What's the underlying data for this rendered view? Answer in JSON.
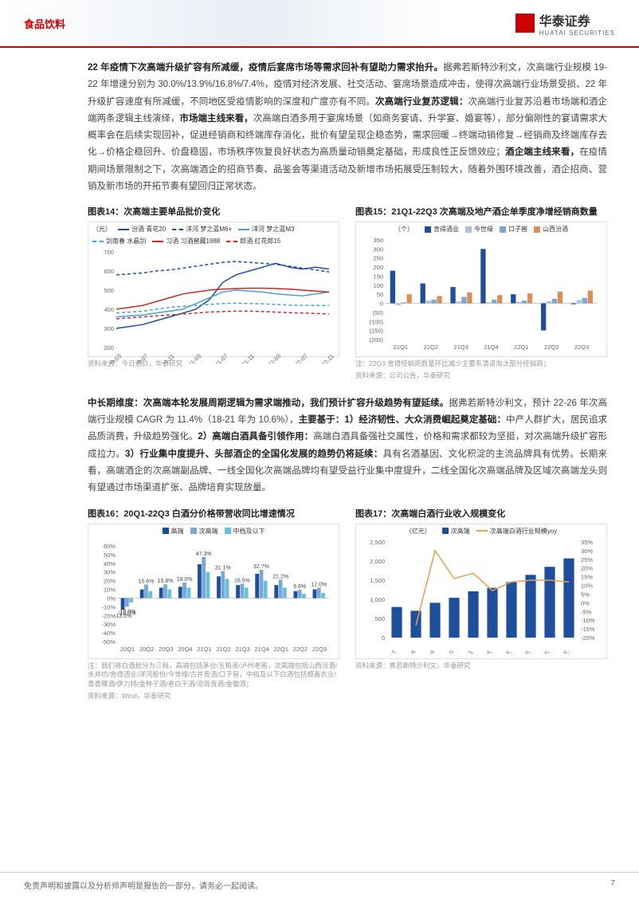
{
  "header": {
    "category": "食品饮料",
    "company": "华泰证券",
    "company_en": "HUATAI SECURITIES"
  },
  "para1": {
    "bold_lead": "22 年疫情下次高端升级扩容有所减缓，疫情后宴席市场等需求回补有望助力需求抬升。",
    "text1": "据弗若斯特沙利文，次高端行业规模 19-22 年增速分别为 30.0%/13.9%/16.8%/7.4%，疫情对经济发展、社交活动、宴席场景造成冲击，使得次高端行业场景受损、22 年升级扩容速度有所减缓，不同地区受疫情影响的深度和广度亦有不同。",
    "bold2": "次高端行业复苏逻辑：",
    "text2": "次高端行业复苏沿着市场端和酒企端两条逻辑主线演绎，",
    "bold3": "市场端主线来看，",
    "text3": "次高端白酒多用于宴席场景（如商务宴请、升学宴、婚宴等），部分偏刚性的宴请需求大概率会在后续实现回补，促进经销商和终端库存消化，批价有望呈现企稳态势，需求回暖→终端动销修复→经销商及终端库存去化→价格企稳回升、价盘稳固，市场秩序恢复良好状态为高质量动销奠定基础，形成良性正反馈效应；",
    "bold4": "酒企端主线来看，",
    "text4": "在疫情期间场景限制之下，次高端酒企的招商节奏、品鉴会等渠道活动及新增市场拓展受压制较大，随着外围环境改善，酒企招商、营销及新市场的开拓节奏有望回归正常状态。"
  },
  "chart14": {
    "title": "图表14：次高端主要单品批价变化",
    "ylabel": "（元）",
    "series": [
      {
        "name": "汾酒 青花20",
        "color": "#1f4e9c",
        "dash": "0"
      },
      {
        "name": "洋河 梦之蓝M6+",
        "color": "#1f4e9c",
        "dash": "4,3"
      },
      {
        "name": "洋河 梦之蓝M3",
        "color": "#4a9fd8",
        "dash": "0"
      },
      {
        "name": "剑南春 水晶剑",
        "color": "#4a9fd8",
        "dash": "4,3"
      },
      {
        "name": "习酒 习酒窖藏1988",
        "color": "#c82828",
        "dash": "0"
      },
      {
        "name": "郎酒 红花郎15",
        "color": "#c82828",
        "dash": "4,3"
      }
    ],
    "xlabels": [
      "20-03",
      "20-05",
      "20-07",
      "20-09",
      "20-11",
      "21-01",
      "21-03",
      "21-05",
      "21-07",
      "21-09",
      "21-11",
      "22-01",
      "22-03",
      "22-05",
      "22-07",
      "22-09",
      "22-11"
    ],
    "ylim": [
      200,
      700
    ],
    "ytick_step": 100,
    "lines": [
      [
        300,
        310,
        320,
        340,
        360,
        380,
        400,
        450,
        540,
        580,
        600,
        620,
        640,
        620,
        610,
        620,
        610
      ],
      [
        580,
        585,
        590,
        600,
        605,
        615,
        625,
        635,
        645,
        650,
        645,
        640,
        635,
        625,
        615,
        605,
        595
      ],
      [
        360,
        365,
        370,
        380,
        390,
        400,
        430,
        460,
        490,
        500,
        495,
        490,
        480,
        475,
        470,
        480,
        490
      ],
      [
        380,
        385,
        390,
        400,
        410,
        415,
        420,
        425,
        430,
        432,
        430,
        428,
        425,
        422,
        420,
        420,
        420
      ],
      [
        400,
        410,
        420,
        440,
        460,
        480,
        490,
        500,
        505,
        508,
        510,
        510,
        508,
        505,
        500,
        495,
        490
      ],
      [
        350,
        355,
        360,
        365,
        370,
        375,
        380,
        385,
        388,
        390,
        390,
        388,
        385,
        382,
        380,
        378,
        375
      ]
    ],
    "source": "资料来源：今日酒价，华泰研究"
  },
  "chart15": {
    "title": "图表15：21Q1-22Q3 次高端及地产酒企单季度净增经销商数量",
    "ylabel": "（个）",
    "series": [
      {
        "name": "舍得酒业",
        "color": "#1f4e9c"
      },
      {
        "name": "今世缘",
        "color": "#a8c4e0"
      },
      {
        "name": "口子窖",
        "color": "#7aa8d4"
      },
      {
        "name": "山西汾酒",
        "color": "#d89058"
      }
    ],
    "xlabels": [
      "21Q1",
      "21Q2",
      "21Q3",
      "21Q4",
      "22Q1",
      "22Q2",
      "22Q3"
    ],
    "ylim": [
      -200,
      350
    ],
    "yticks": [
      -200,
      -150,
      -100,
      -50,
      0,
      50,
      100,
      150,
      200,
      250,
      300,
      350
    ],
    "data": [
      [
        180,
        -10,
        5,
        50
      ],
      [
        110,
        15,
        20,
        40
      ],
      [
        90,
        10,
        35,
        60
      ],
      [
        300,
        5,
        20,
        45
      ],
      [
        50,
        8,
        15,
        55
      ],
      [
        -150,
        12,
        25,
        65
      ],
      [
        -5,
        18,
        30,
        70
      ]
    ],
    "note": "注：22Q3 舍得经销商数量环比减少主要系清退淘汰部分经销商；",
    "source": "资料来源：公司公告，华泰研究"
  },
  "para2": {
    "bold_lead": "中长期维度：次高端本轮发展周期逻辑为需求端推动，我们预计扩容升级趋势有望延续。",
    "text1": "据弗若斯特沙利文，预计 22-26 年次高端行业规模 CAGR 为 11.4%（18-21 年为 10.6%），",
    "bold2": "主要基于：1）经济韧性、大众消费崛起奠定基础：",
    "text2": "中产人群扩大，居民追求品质消费，升级趋势强化。",
    "bold3": "2）高端白酒具备引领作用：",
    "text3": "高端白酒具备强社交属性，价格和需求都较为坚挺，对次高端升级扩容形成拉力。",
    "bold4": "3）行业集中度提升、头部酒企的全国化发展的趋势仍将延续：",
    "text4": "具有名酒基因、文化积淀的主流品牌具有优势。长期来看，高端酒企的次高端副品牌、一线全国化次高端品牌均有望受益行业集中度提升，二线全国化次高端品牌及区域次高端龙头则有望通过市场渠道扩张、品牌培育实现放量。"
  },
  "chart16": {
    "title": "图表16：20Q1-22Q3 白酒分价格带营收同比增速情况",
    "series": [
      {
        "name": "高端",
        "color": "#1f4e9c"
      },
      {
        "name": "次高端",
        "color": "#7aa8d4"
      },
      {
        "name": "中档及以下",
        "color": "#6ac0d8"
      }
    ],
    "xlabels": [
      "20Q1",
      "20Q2",
      "20Q3",
      "20Q4",
      "21Q1",
      "21Q2",
      "21Q3",
      "21Q4",
      "22Q1",
      "22Q2",
      "22Q3"
    ],
    "ylim": [
      -50,
      60
    ],
    "ytick_step": 10,
    "data": [
      [
        -13.5,
        -10.0,
        -5
      ],
      [
        10,
        15.6,
        8
      ],
      [
        12,
        15.8,
        10
      ],
      [
        13,
        18,
        12
      ],
      [
        38.9,
        47.3,
        30
      ],
      [
        25,
        31.1,
        22
      ],
      [
        15,
        16.5,
        12
      ],
      [
        28,
        32.7,
        20
      ],
      [
        15,
        21.2,
        12
      ],
      [
        8,
        9.6,
        5
      ],
      [
        10,
        12,
        6
      ]
    ],
    "value_labels": [
      "-13.5%",
      "-10.0%",
      "",
      "",
      "15.6%",
      "15.8%",
      "",
      "38.9%",
      "47.3%",
      "31.1%",
      "16.5%",
      "32.7%",
      "21.2%",
      "9.6%",
      ""
    ],
    "note": "注：我们将白酒划分为三档，高端包括茅台/五粮液/泸州老窖，次高端包括山西汾酒/水井坊/舍得酒业/洋河股份/今世缘/古井贡酒/口子窖，中档及以下白酒包括顺鑫农业/青青稞酒/伊力特/金种子酒/老白干酒/迎驾贡酒/金徽酒；",
    "source": "资料来源：Wind，华泰研究"
  },
  "chart17": {
    "title": "图表17：次高端白酒行业收入规模变化",
    "ylabel": "（亿元）",
    "bar_name": "次高端",
    "line_name": "次高端白酒行业规模yoy",
    "bar_color": "#1f4e9c",
    "line_color": "#e8a050",
    "xlabels": [
      "2017",
      "2018",
      "2019",
      "2020",
      "2021",
      "2022E",
      "2023E",
      "2024E",
      "2025E",
      "2026E"
    ],
    "ylim_left": [
      0,
      2500
    ],
    "ytick_left": 500,
    "ylim_right": [
      -20,
      35
    ],
    "yticks_right": [
      -20,
      -15,
      -10,
      -5,
      0,
      5,
      10,
      15,
      20,
      25,
      30,
      35
    ],
    "bars": [
      800,
      700,
      910,
      1040,
      1210,
      1300,
      1450,
      1640,
      1850,
      2070
    ],
    "line": [
      null,
      -13,
      30,
      14,
      17,
      7,
      12,
      13,
      13,
      12
    ],
    "source": "资料来源：弗若斯特沙利文，华泰研究"
  },
  "footer": {
    "disclaimer": "免责声明和披露以及分析师声明是报告的一部分，请务必一起阅读。",
    "page": "7"
  }
}
